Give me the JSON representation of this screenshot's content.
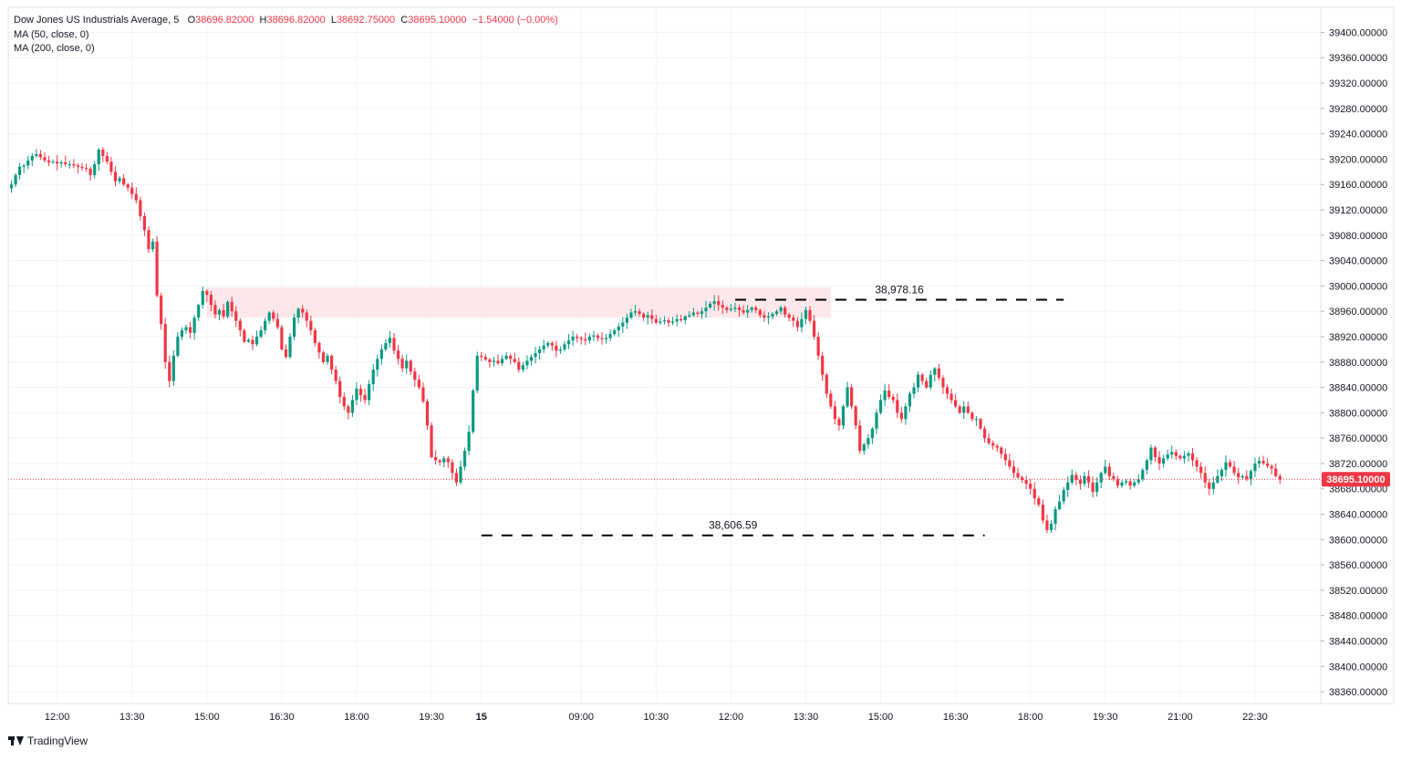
{
  "legend": {
    "symbol": "Dow Jones US Industrials Average, 5",
    "open_label": "O",
    "open": "38696.82000",
    "high_label": "H",
    "high": "38696.82000",
    "low_label": "L",
    "low": "38692.75000",
    "close_label": "C",
    "close": "38695.10000",
    "change": "−1.54000 (−0.00%)",
    "ma50": "MA (50, close, 0)",
    "ma200": "MA (200, close, 0)"
  },
  "branding": {
    "name": "TradingView"
  },
  "colors": {
    "up": "#089981",
    "down": "#f23645",
    "zone": "#fce8ea",
    "grid": "#f0f3fa",
    "axis": "#e0e3eb",
    "price_line": "#f23645"
  },
  "chart_data": {
    "type": "candlestick",
    "y_ticks": [
      39400,
      39360,
      39320,
      39280,
      39240,
      39200,
      39160,
      39120,
      39080,
      39040,
      39000,
      38960,
      38920,
      38880,
      38840,
      38800,
      38760,
      38720,
      38680,
      38640,
      38600,
      38560,
      38520,
      38480,
      38440,
      38400,
      38360
    ],
    "y_tick_decimals": 5,
    "ylim": [
      38335,
      39425
    ],
    "x_ticks": [
      {
        "label": "12:00",
        "bar": 11
      },
      {
        "label": "13:30",
        "bar": 29
      },
      {
        "label": "15:00",
        "bar": 47
      },
      {
        "label": "16:30",
        "bar": 65
      },
      {
        "label": "18:00",
        "bar": 83
      },
      {
        "label": "19:30",
        "bar": 101
      },
      {
        "label": "15",
        "bar": 113,
        "bold": true
      },
      {
        "label": "09:00",
        "bar": 137
      },
      {
        "label": "10:30",
        "bar": 155
      },
      {
        "label": "12:00",
        "bar": 173
      },
      {
        "label": "13:30",
        "bar": 191
      },
      {
        "label": "15:00",
        "bar": 209
      },
      {
        "label": "16:30",
        "bar": 227
      },
      {
        "label": "18:00",
        "bar": 245
      },
      {
        "label": "19:30",
        "bar": 263
      },
      {
        "label": "21:00",
        "bar": 281
      },
      {
        "label": "22:30",
        "bar": 299
      }
    ],
    "last_price": 38695.1,
    "last_price_label": "38695.10000",
    "resistance": {
      "value": 38978.16,
      "label": "38,978.16",
      "from_bar": 174,
      "to_bar": 253
    },
    "support": {
      "value": 38606.59,
      "label": "38,606.59",
      "from_bar": 113,
      "to_bar": 234
    },
    "zone": {
      "from_bar": 47,
      "to_bar": 197,
      "low": 38950,
      "high": 38998
    },
    "closes": [
      39160,
      39175,
      39188,
      39190,
      39198,
      39205,
      39208,
      39203,
      39198,
      39195,
      39196,
      39193,
      39195,
      39192,
      39192,
      39190,
      39188,
      39186,
      39185,
      39175,
      39192,
      39215,
      39205,
      39196,
      39180,
      39165,
      39170,
      39160,
      39155,
      39145,
      39135,
      39110,
      39088,
      39058,
      39070,
      38985,
      38940,
      38880,
      38850,
      38890,
      38920,
      38930,
      38935,
      38926,
      38950,
      38970,
      38992,
      38986,
      38970,
      38955,
      38962,
      38952,
      38975,
      38960,
      38945,
      38930,
      38912,
      38915,
      38908,
      38920,
      38930,
      38945,
      38958,
      38948,
      38935,
      38900,
      38888,
      38920,
      38950,
      38964,
      38958,
      38945,
      38930,
      38910,
      38895,
      38880,
      38890,
      38868,
      38850,
      38825,
      38810,
      38800,
      38820,
      38838,
      38828,
      38820,
      38845,
      38868,
      38885,
      38900,
      38910,
      38918,
      38898,
      38885,
      38870,
      38882,
      38865,
      38852,
      38840,
      38818,
      38780,
      38730,
      38725,
      38722,
      38728,
      38722,
      38705,
      38690,
      38715,
      38740,
      38770,
      38835,
      38890,
      38888,
      38884,
      38880,
      38882,
      38878,
      38885,
      38890,
      38885,
      38880,
      38868,
      38875,
      38882,
      38888,
      38894,
      38900,
      38906,
      38910,
      38906,
      38898,
      38900,
      38908,
      38914,
      38920,
      38918,
      38916,
      38914,
      38920,
      38922,
      38918,
      38916,
      38918,
      38924,
      38930,
      38936,
      38942,
      38950,
      38958,
      38960,
      38956,
      38950,
      38954,
      38948,
      38942,
      38944,
      38946,
      38942,
      38944,
      38948,
      38946,
      38952,
      38954,
      38958,
      38956,
      38960,
      38966,
      38972,
      38976,
      38970,
      38966,
      38962,
      38964,
      38966,
      38962,
      38958,
      38962,
      38966,
      38962,
      38954,
      38950,
      38952,
      38956,
      38960,
      38966,
      38955,
      38950,
      38945,
      38935,
      38948,
      38962,
      38945,
      38920,
      38890,
      38860,
      38830,
      38810,
      38790,
      38780,
      38810,
      38840,
      38810,
      38780,
      38740,
      38750,
      38760,
      38775,
      38800,
      38820,
      38835,
      38825,
      38820,
      38800,
      38790,
      38810,
      38830,
      38840,
      38860,
      38850,
      38840,
      38860,
      38870,
      38855,
      38840,
      38830,
      38820,
      38810,
      38800,
      38810,
      38800,
      38790,
      38790,
      38775,
      38760,
      38752,
      38748,
      38745,
      38735,
      38725,
      38715,
      38705,
      38698,
      38694,
      38688,
      38680,
      38665,
      38655,
      38630,
      38615,
      38625,
      38648,
      38660,
      38678,
      38690,
      38702,
      38694,
      38688,
      38700,
      38690,
      38675,
      38690,
      38705,
      38715,
      38700,
      38695,
      38685,
      38690,
      38692,
      38685,
      38690,
      38695,
      38710,
      38725,
      38745,
      38730,
      38720,
      38728,
      38734,
      38738,
      38732,
      38728,
      38732,
      38736,
      38725,
      38715,
      38705,
      38690,
      38680,
      38690,
      38700,
      38710,
      38722,
      38715,
      38705,
      38698,
      38700,
      38695,
      38708,
      38720,
      38724,
      38720,
      38716,
      38712,
      38700,
      38695
    ]
  }
}
